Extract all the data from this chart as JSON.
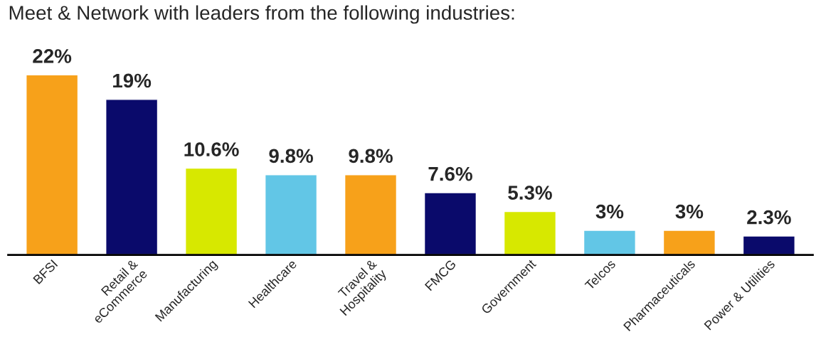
{
  "chart_data": {
    "type": "bar",
    "title": "Meet & Network with leaders from the following industries:",
    "categories": [
      "BFSI",
      "Retail &\neCommerce",
      "Manufacturing",
      "Healthcare",
      "Travel &\nHospitality",
      "FMCG",
      "Government",
      "Telcos",
      "Pharmaceuticals",
      "Power & Utilities"
    ],
    "values": [
      22,
      19,
      10.6,
      9.8,
      9.8,
      7.6,
      5.3,
      3,
      3,
      2.3
    ],
    "value_labels": [
      "22%",
      "19%",
      "10.6%",
      "9.8%",
      "9.8%",
      "7.6%",
      "5.3%",
      "3%",
      "3%",
      "2.3%"
    ],
    "colors": [
      "#f7a11a",
      "#0a0a6b",
      "#d7e800",
      "#62c6e6",
      "#f7a11a",
      "#0a0a6b",
      "#d7e800",
      "#62c6e6",
      "#f7a11a",
      "#0a0a6b"
    ],
    "tick_labels": "x",
    "grid": false,
    "legend": false
  }
}
